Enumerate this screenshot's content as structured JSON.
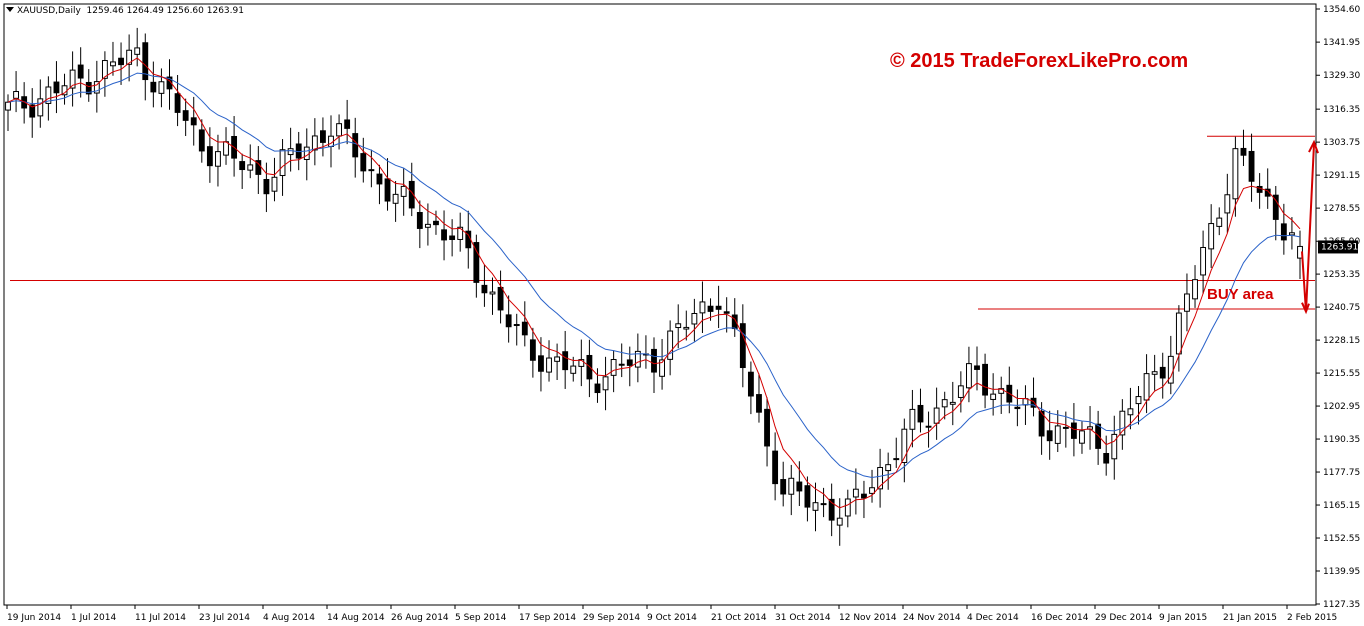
{
  "header": {
    "symbol_label": "XAUUSD,Daily",
    "ohlc_text": "1259.46 1264.49 1256.60 1263.91"
  },
  "watermark": "© 2015 TradeForexLikePro.com",
  "annotation": "BUY area",
  "last_price": "1263.91",
  "colors": {
    "background": "#ffffff",
    "candle": "#000000",
    "ma_fast": "#d40000",
    "ma_slow": "#2a62c9",
    "level_line": "#d40000",
    "watermark": "#d40000",
    "price_tag_bg": "#000000",
    "price_tag_fg": "#ffffff"
  },
  "chart_data": {
    "type": "candlestick",
    "symbol": "XAUUSD",
    "timeframe": "Daily",
    "ylim": [
      1127.35,
      1354.6
    ],
    "y_ticks": [
      "1354.60",
      "1341.95",
      "1329.30",
      "1316.35",
      "1303.75",
      "1291.15",
      "1278.55",
      "1265.90",
      "1253.35",
      "1240.75",
      "1228.15",
      "1215.55",
      "1202.95",
      "1190.35",
      "1177.75",
      "1165.15",
      "1152.55",
      "1139.95",
      "1127.35"
    ],
    "x_ticks": [
      "19 Jun 2014",
      "1 Jul 2014",
      "11 Jul 2014",
      "23 Jul 2014",
      "4 Aug 2014",
      "14 Aug 2014",
      "26 Aug 2014",
      "5 Sep 2014",
      "17 Sep 2014",
      "29 Sep 2014",
      "9 Oct 2014",
      "21 Oct 2014",
      "31 Oct 2014",
      "12 Nov 2014",
      "24 Nov 2014",
      "4 Dec 2014",
      "16 Dec 2014",
      "29 Dec 2014",
      "9 Jan 2015",
      "21 Jan 2015",
      "2 Feb 2015"
    ],
    "key_points": [
      {
        "label": "19 Jun 2014",
        "close": 1316
      },
      {
        "label": "1 Jul 2014",
        "close": 1326
      },
      {
        "label": "11 Jul 2014",
        "close": 1337
      },
      {
        "label": "23 Jul 2014",
        "close": 1303
      },
      {
        "label": "4 Aug 2014",
        "close": 1290
      },
      {
        "label": "14 Aug 2014",
        "close": 1310
      },
      {
        "label": "26 Aug 2014",
        "close": 1282
      },
      {
        "label": "5 Sep 2014",
        "close": 1265
      },
      {
        "label": "17 Sep 2014",
        "close": 1225
      },
      {
        "label": "29 Sep 2014",
        "close": 1214
      },
      {
        "label": "9 Oct 2014",
        "close": 1222
      },
      {
        "label": "21 Oct 2014",
        "close": 1246
      },
      {
        "label": "31 Oct 2014",
        "close": 1170
      },
      {
        "label": "12 Nov 2014",
        "close": 1162
      },
      {
        "label": "24 Nov 2014",
        "close": 1195
      },
      {
        "label": "4 Dec 2014",
        "close": 1215
      },
      {
        "label": "16 Dec 2014",
        "close": 1196
      },
      {
        "label": "29 Dec 2014",
        "close": 1188
      },
      {
        "label": "9 Jan 2015",
        "close": 1225
      },
      {
        "label": "21 Jan 2015",
        "close": 1298
      },
      {
        "label": "2 Feb 2015",
        "close": 1263.91
      }
    ],
    "last_candle": {
      "open": 1259.46,
      "high": 1264.49,
      "low": 1256.6,
      "close": 1263.91
    },
    "horizontal_levels": [
      1250.9,
      1240.0,
      1306.0
    ],
    "series": [
      {
        "type": "moving-average"
      },
      {
        "type": "moving-average"
      }
    ],
    "grid": false
  }
}
